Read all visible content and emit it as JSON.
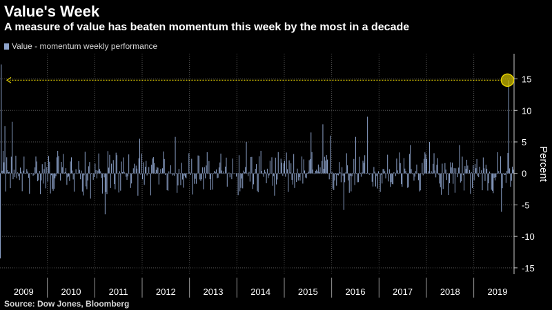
{
  "header": {
    "title": "Value's Week",
    "subtitle": "A measure of value has beaten momentum this week by the most in a decade"
  },
  "legend": {
    "label": "Value - momentum weekly performance"
  },
  "source": "Source: Dow Jones, Bloomberg",
  "colors": {
    "bar": "#8ea4cc",
    "highlight": "#e6d200",
    "grid": "#555555",
    "background": "#000000"
  },
  "chart_data": {
    "type": "bar",
    "title": "Value's Week",
    "subtitle": "A measure of value has beaten momentum this week by the most in a decade",
    "series": [
      {
        "name": "Value - momentum weekly performance"
      }
    ],
    "ylabel": "Percent",
    "ylim": [
      -16,
      19
    ],
    "y_ticks": [
      15,
      10,
      5,
      0,
      -5,
      -10,
      -15
    ],
    "y_tick_labels": [
      "15",
      "10",
      "5",
      "0",
      "-5",
      "-10",
      "-15"
    ],
    "year_labels": [
      "2009",
      "2010",
      "2011",
      "2012",
      "2013",
      "2014",
      "2015",
      "2016",
      "2017",
      "2018",
      "2019"
    ],
    "x_range": [
      2009.0,
      2019.85
    ],
    "grid": true,
    "y_axis_position": "right",
    "spikes": [
      {
        "x": 2009.0,
        "y": -13.5
      },
      {
        "x": 2009.01,
        "y": 17.3
      },
      {
        "x": 2009.1,
        "y": 7.5
      },
      {
        "x": 2009.25,
        "y": 8.2
      },
      {
        "x": 2010.9,
        "y": -4.0
      },
      {
        "x": 2011.22,
        "y": -6.5
      },
      {
        "x": 2011.95,
        "y": 5.5
      },
      {
        "x": 2012.7,
        "y": 5.8
      },
      {
        "x": 2014.2,
        "y": 5.0
      },
      {
        "x": 2015.55,
        "y": 6.5
      },
      {
        "x": 2015.8,
        "y": 7.8
      },
      {
        "x": 2015.97,
        "y": 6.0
      },
      {
        "x": 2016.25,
        "y": -5.8
      },
      {
        "x": 2016.5,
        "y": 5.8
      },
      {
        "x": 2016.75,
        "y": 9.0
      },
      {
        "x": 2017.65,
        "y": 4.5
      },
      {
        "x": 2018.05,
        "y": 5.0
      },
      {
        "x": 2018.7,
        "y": 4.5
      },
      {
        "x": 2019.58,
        "y": -6.1
      },
      {
        "x": 2019.74,
        "y": 14.8
      }
    ],
    "annotation": {
      "x": 2019.74,
      "y": 14.8,
      "arrow_to_x": 2009.0
    },
    "noise_amplitude_note": "weekly bars mostly between -4 and 4"
  }
}
